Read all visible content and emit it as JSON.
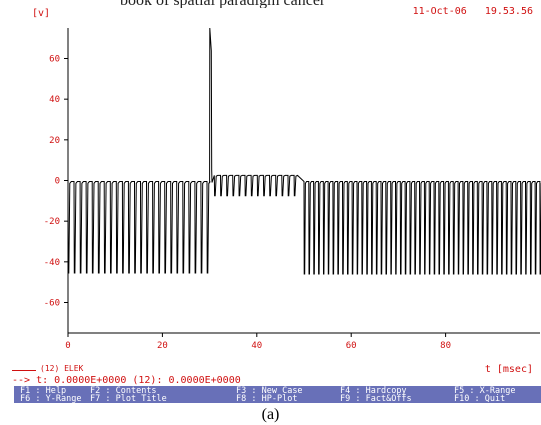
{
  "header": {
    "top_text": "book of spatial paradigm cancer",
    "y_unit": "[v]",
    "date": "11-Oct-06",
    "time": "19.53.56"
  },
  "chart_data": {
    "type": "line",
    "xlabel": "t [msec]",
    "ylabel": "[v]",
    "xlim": [
      0,
      100
    ],
    "ylim": [
      -75,
      75
    ],
    "x_ticks": [
      0,
      20,
      40,
      60,
      80
    ],
    "y_ticks": [
      60,
      40,
      20,
      0,
      -20,
      -40,
      -60
    ],
    "series": [
      {
        "name": "ELEK",
        "color": "#000000",
        "segments": [
          {
            "x_start": 0,
            "x_end": 29.7,
            "period": 1.28,
            "high": -0.5,
            "low": -45.5
          },
          {
            "x_start": 30.0,
            "x_end": 30.5,
            "spike_peak": 75
          },
          {
            "x_start": 31,
            "x_end": 49,
            "period": 1.3,
            "high": 2.5,
            "low": -7.5
          },
          {
            "x_start": 50,
            "x_end": 100,
            "period": 1.02,
            "high": -0.5,
            "low": -46
          }
        ]
      }
    ]
  },
  "legend": {
    "index": "(12)",
    "name": "ELEK"
  },
  "cursor": {
    "arrow": "-->",
    "t_readout": "t: 0.0000E+0000",
    "value_readout": "(12): 0.0000E+0000"
  },
  "function_keys": [
    {
      "key": "F1",
      "label": "Help"
    },
    {
      "key": "F6",
      "label": "Y-Range"
    },
    {
      "key": "F2",
      "label": "Contents"
    },
    {
      "key": "F7",
      "label": "Plot Title"
    },
    {
      "key": "F3",
      "label": "New Case"
    },
    {
      "key": "F8",
      "label": "HP-Plot"
    },
    {
      "key": "F4",
      "label": "Hardcopy"
    },
    {
      "key": "F9",
      "label": "Fact&Offs"
    },
    {
      "key": "F5",
      "label": "X-Range"
    },
    {
      "key": "F10",
      "label": "Quit"
    }
  ],
  "caption": "(a)"
}
